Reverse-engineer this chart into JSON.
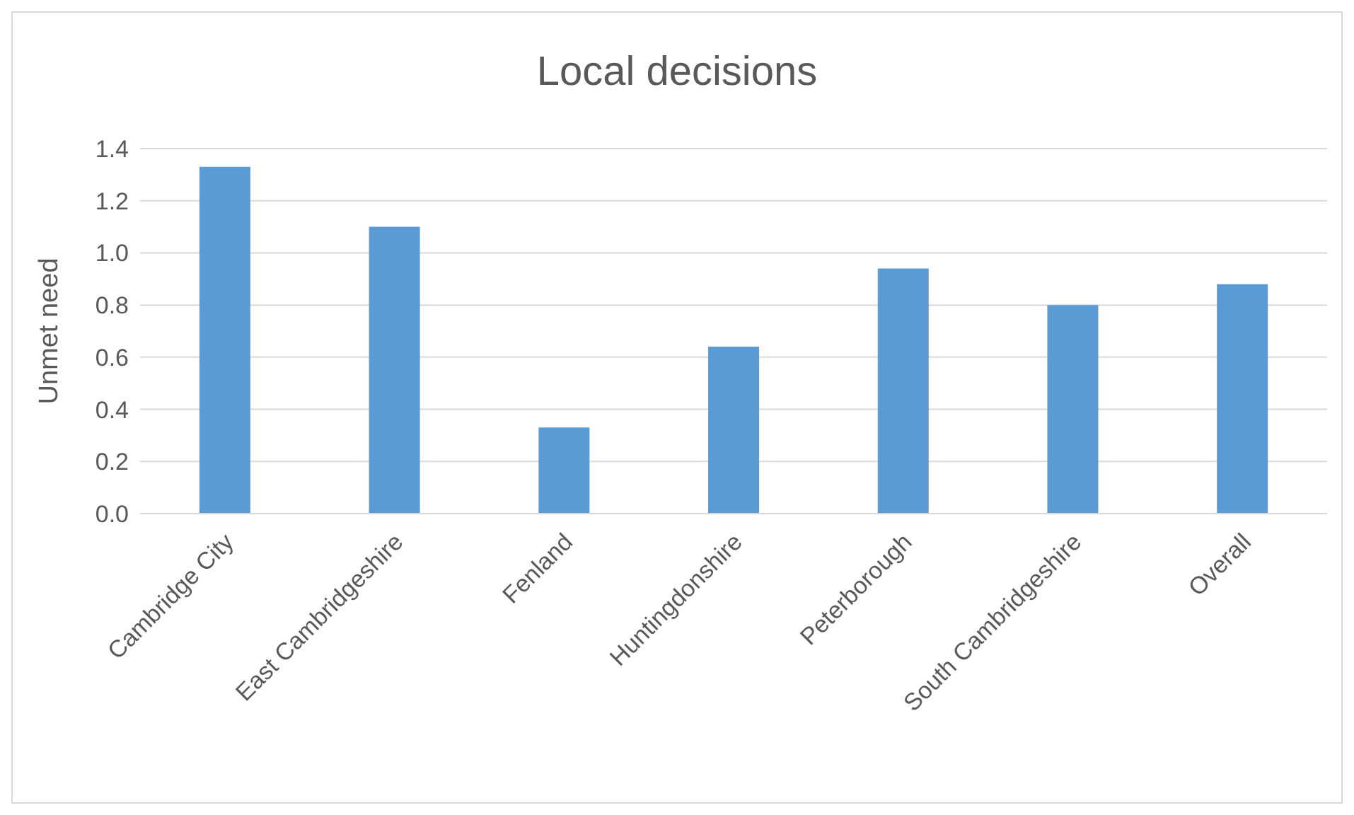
{
  "chart_data": {
    "type": "bar",
    "title": "Local decisions",
    "ylabel": "Unmet need",
    "categories": [
      "Cambridge City",
      "East Cambridgeshire",
      "Fenland",
      "Huntingdonshire",
      "Peterborough",
      "South Cambridgeshire",
      "Overall"
    ],
    "values": [
      1.33,
      1.1,
      0.33,
      0.64,
      0.94,
      0.8,
      0.88
    ],
    "color": "#5b9bd5",
    "ylim": [
      0,
      1.4
    ],
    "yticks": [
      {
        "value": 0,
        "label": "0.0"
      },
      {
        "value": 0.2,
        "label": "0.2"
      },
      {
        "value": 0.4,
        "label": "0.4"
      },
      {
        "value": 0.6,
        "label": "0.6"
      },
      {
        "value": 0.8,
        "label": "0.8"
      },
      {
        "value": 1,
        "label": "1.0"
      },
      {
        "value": 1.2,
        "label": "1.2"
      },
      {
        "value": 1.4,
        "label": "1.4"
      }
    ],
    "grid": "y"
  }
}
